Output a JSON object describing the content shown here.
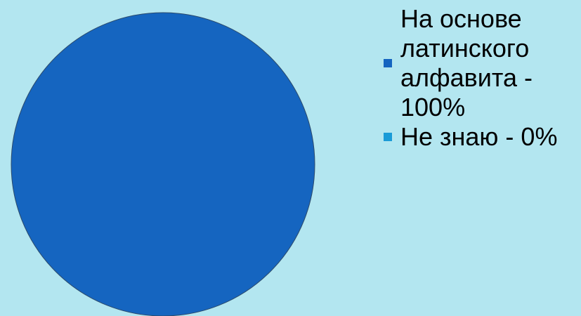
{
  "chart_data": {
    "type": "pie",
    "title": "",
    "background_color": "#b3e6f0",
    "legend_position": "right",
    "series": [
      {
        "values": [
          100,
          0
        ],
        "colors": [
          "#1565c0",
          "#1a9bd7"
        ]
      }
    ],
    "categories": [
      "На основе латинского алфавита",
      "Не знаю"
    ],
    "legend": [
      {
        "label": "На основе латинского алфавита - 100%",
        "color": "#1565c0"
      },
      {
        "label": "Не знаю - 0%",
        "color": "#1a9bd7"
      }
    ],
    "slice_outline_color": "#2b4a6b"
  }
}
